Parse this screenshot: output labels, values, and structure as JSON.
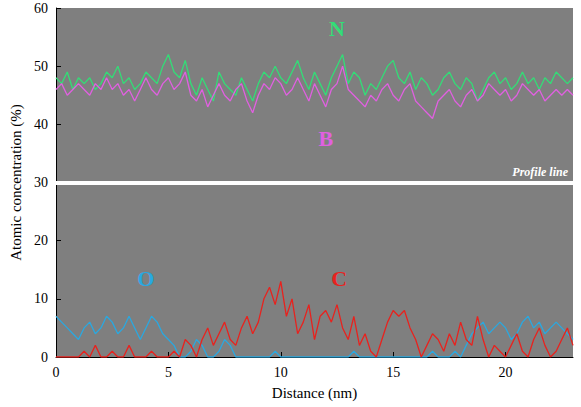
{
  "chart_data": {
    "type": "line",
    "x_label": "Distance (nm)",
    "y_label": "Atomic concentration (%)",
    "xlim": [
      0,
      23
    ],
    "xticks": [
      0,
      5,
      10,
      15,
      20
    ],
    "ylim": [
      0,
      60
    ],
    "yticks": [
      0,
      10,
      20,
      30,
      40,
      50,
      60
    ],
    "grid": false,
    "annotations": [
      {
        "text": "Profile line",
        "y": 30
      }
    ],
    "x": [
      0,
      0.25,
      0.5,
      0.75,
      1,
      1.25,
      1.5,
      1.75,
      2,
      2.25,
      2.5,
      2.75,
      3,
      3.25,
      3.5,
      3.75,
      4,
      4.25,
      4.5,
      4.75,
      5,
      5.25,
      5.5,
      5.75,
      6,
      6.25,
      6.5,
      6.75,
      7,
      7.25,
      7.5,
      7.75,
      8,
      8.25,
      8.5,
      8.75,
      9,
      9.25,
      9.5,
      9.75,
      10,
      10.25,
      10.5,
      10.75,
      11,
      11.25,
      11.5,
      11.75,
      12,
      12.25,
      12.5,
      12.75,
      13,
      13.25,
      13.5,
      13.75,
      14,
      14.25,
      14.5,
      14.75,
      15,
      15.25,
      15.5,
      15.75,
      16,
      16.25,
      16.5,
      16.75,
      17,
      17.25,
      17.5,
      17.75,
      18,
      18.25,
      18.5,
      18.75,
      19,
      19.25,
      19.5,
      19.75,
      20,
      20.25,
      20.5,
      20.75,
      21,
      21.25,
      21.5,
      21.75,
      22,
      22.25,
      22.5,
      22.75,
      23
    ],
    "series": [
      {
        "name": "N",
        "color": "#33dd77",
        "values": [
          48,
          47,
          49,
          46,
          48,
          47,
          48,
          46,
          47,
          49,
          48,
          50,
          47,
          48,
          46,
          47,
          49,
          48,
          47,
          50,
          52,
          49,
          48,
          51,
          47,
          45,
          48,
          46,
          44,
          49,
          47,
          46,
          45,
          48,
          46,
          44,
          47,
          49,
          48,
          50,
          48,
          47,
          49,
          51,
          48,
          46,
          49,
          47,
          45,
          48,
          50,
          52,
          47,
          49,
          48,
          45,
          47,
          46,
          48,
          50,
          51,
          48,
          47,
          49,
          46,
          48,
          47,
          45,
          46,
          48,
          49,
          47,
          46,
          48,
          47,
          44,
          46,
          48,
          49,
          47,
          48,
          46,
          47,
          49,
          47,
          48,
          46,
          48,
          47,
          49,
          48,
          47,
          48
        ]
      },
      {
        "name": "B",
        "color": "#e060e0",
        "values": [
          46,
          47,
          45,
          46,
          47,
          46,
          45,
          47,
          46,
          48,
          46,
          47,
          45,
          46,
          44,
          46,
          48,
          46,
          45,
          47,
          48,
          46,
          47,
          49,
          45,
          44,
          46,
          43,
          45,
          47,
          45,
          44,
          46,
          47,
          44,
          42,
          45,
          47,
          46,
          48,
          47,
          45,
          46,
          48,
          46,
          44,
          47,
          45,
          43,
          46,
          47,
          50,
          46,
          45,
          44,
          43,
          45,
          44,
          46,
          47,
          45,
          44,
          46,
          47,
          44,
          43,
          42,
          41,
          44,
          45,
          46,
          44,
          43,
          45,
          46,
          44,
          45,
          47,
          46,
          45,
          46,
          44,
          45,
          47,
          46,
          45,
          46,
          44,
          45,
          46,
          45,
          46,
          45
        ]
      },
      {
        "name": "O",
        "color": "#2aa8e0",
        "values": [
          7,
          6,
          5,
          4,
          3,
          5,
          6,
          4,
          5,
          7,
          6,
          4,
          5,
          7,
          5,
          3,
          5,
          7,
          6,
          4,
          3,
          2,
          0,
          0,
          1,
          3,
          2,
          0,
          0,
          1,
          3,
          2,
          0,
          0,
          0,
          0,
          0,
          0,
          0,
          1,
          0,
          0,
          0,
          0,
          0,
          0,
          0,
          0,
          0,
          0,
          0,
          0,
          0,
          1,
          0,
          0,
          0,
          0,
          0,
          0,
          0,
          0,
          0,
          0,
          0,
          0,
          0,
          1,
          0,
          0,
          0,
          1,
          0,
          2,
          4,
          5,
          6,
          4,
          5,
          6,
          5,
          3,
          4,
          6,
          7,
          5,
          6,
          4,
          5,
          6,
          5,
          4,
          3
        ]
      },
      {
        "name": "C",
        "color": "#e8221e",
        "values": [
          0,
          0,
          0,
          0,
          0,
          1,
          0,
          2,
          0,
          0,
          1,
          0,
          0,
          2,
          0,
          0,
          0,
          1,
          0,
          0,
          0,
          1,
          0,
          3,
          2,
          0,
          3,
          5,
          2,
          4,
          6,
          3,
          2,
          5,
          7,
          4,
          6,
          10,
          12,
          9,
          13,
          7,
          10,
          4,
          6,
          9,
          3,
          7,
          8,
          6,
          9,
          5,
          3,
          7,
          2,
          4,
          1,
          0,
          3,
          6,
          8,
          7,
          8,
          5,
          3,
          0,
          2,
          4,
          3,
          1,
          4,
          2,
          6,
          3,
          2,
          7,
          3,
          0,
          2,
          1,
          0,
          2,
          4,
          1,
          0,
          3,
          5,
          2,
          0,
          1,
          3,
          5,
          2
        ]
      }
    ]
  }
}
